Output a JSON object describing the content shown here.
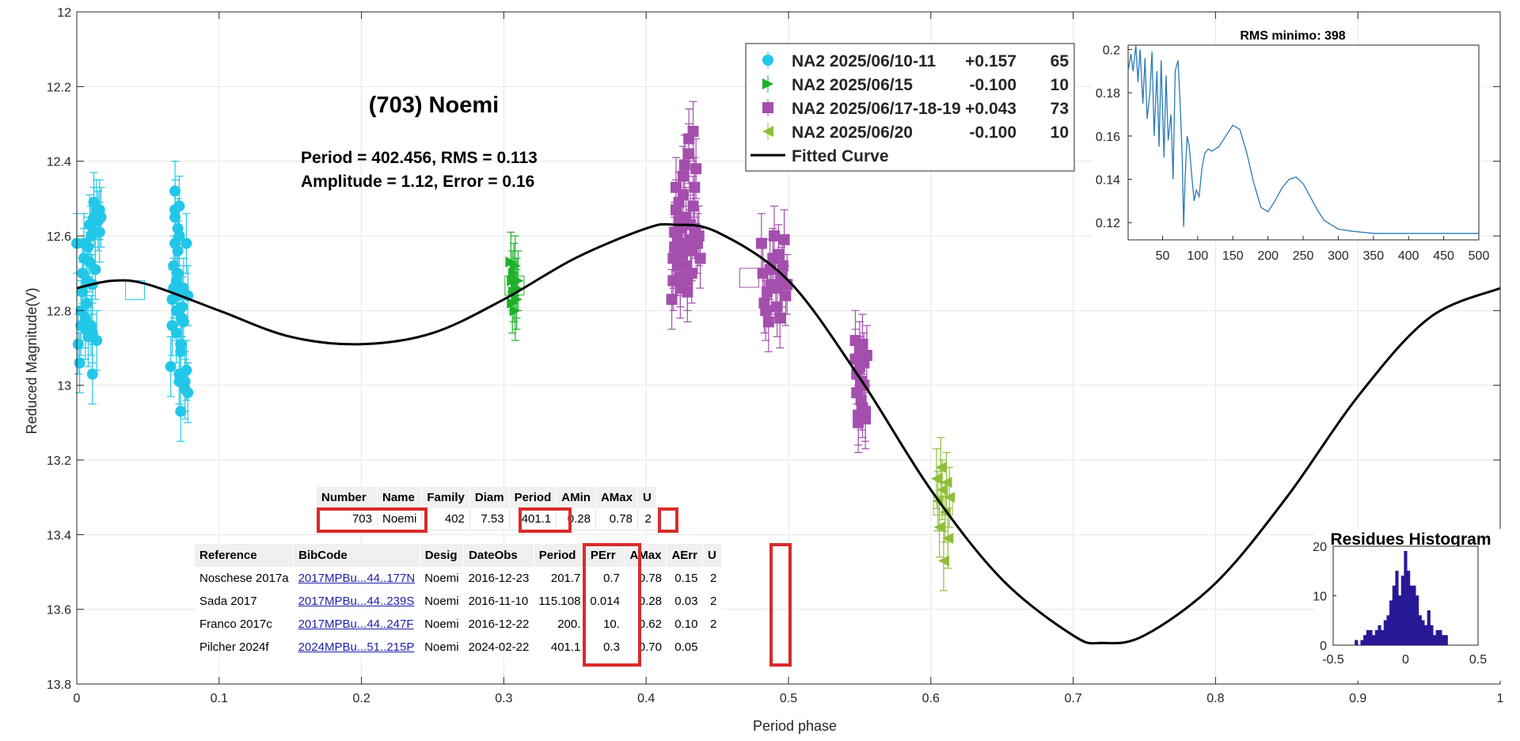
{
  "chart_data": [
    {
      "type": "scatter",
      "title": "(703) Noemi",
      "annotation_lines": [
        "Period =  402.456, RMS = 0.113",
        "Amplitude = 1.12, Error = 0.16"
      ],
      "xlabel": "Period phase",
      "ylabel": "Reduced Magnitude(V)",
      "xlim": [
        0,
        1
      ],
      "ylim": [
        12,
        13.8
      ],
      "y_reversed": true,
      "grid": true,
      "x_ticks": [
        "0",
        "0.1",
        "0.2",
        "0.3",
        "0.4",
        "0.5",
        "0.6",
        "0.7",
        "0.8",
        "0.9",
        "1"
      ],
      "y_ticks": [
        "12",
        "12.2",
        "12.4",
        "12.6",
        "12.8",
        "13",
        "13.2",
        "13.4",
        "13.6",
        "13.8"
      ],
      "legend_position": "top-right",
      "legend": [
        {
          "label": "NA2 2025/06/10-11",
          "offset": "+0.157",
          "count": "65",
          "color": "#22c7e8",
          "marker": "circle"
        },
        {
          "label": "NA2 2025/06/15",
          "offset": "-0.100",
          "count": "10",
          "color": "#1fb02a",
          "marker": "triangle-right"
        },
        {
          "label": "NA2 2025/06/17-18-19",
          "offset": "+0.043",
          "count": "73",
          "color": "#a44fae",
          "marker": "square"
        },
        {
          "label": "NA2 2025/06/20",
          "offset": "-0.100",
          "count": "10",
          "color": "#8fbf3a",
          "marker": "triangle-left"
        },
        {
          "label": "Fitted Curve",
          "offset": "",
          "count": "",
          "color": "#000000",
          "marker": "line"
        }
      ],
      "series": [
        {
          "name": "NA2 2025/06/10-11",
          "color": "#22c7e8",
          "marker": "circle",
          "points": [
            [
              0.0,
              12.62
            ],
            [
              0.001,
              12.89
            ],
            [
              0.002,
              12.94
            ],
            [
              0.003,
              12.84
            ],
            [
              0.003,
              12.8
            ],
            [
              0.004,
              12.75
            ],
            [
              0.004,
              12.7
            ],
            [
              0.005,
              12.66
            ],
            [
              0.005,
              12.62
            ],
            [
              0.006,
              12.82
            ],
            [
              0.006,
              12.85
            ],
            [
              0.007,
              12.78
            ],
            [
              0.007,
              12.72
            ],
            [
              0.008,
              12.87
            ],
            [
              0.008,
              12.63
            ],
            [
              0.009,
              12.57
            ],
            [
              0.009,
              12.67
            ],
            [
              0.01,
              12.6
            ],
            [
              0.01,
              12.84
            ],
            [
              0.011,
              12.73
            ],
            [
              0.011,
              12.86
            ],
            [
              0.011,
              12.97
            ],
            [
              0.012,
              12.51
            ],
            [
              0.012,
              12.55
            ],
            [
              0.013,
              12.59
            ],
            [
              0.013,
              12.69
            ],
            [
              0.014,
              12.53
            ],
            [
              0.014,
              12.88
            ],
            [
              0.015,
              12.56
            ],
            [
              0.016,
              12.59
            ],
            [
              0.016,
              12.53
            ],
            [
              0.017,
              12.55
            ],
            [
              0.066,
              12.95
            ],
            [
              0.067,
              12.77
            ],
            [
              0.067,
              12.84
            ],
            [
              0.068,
              12.74
            ],
            [
              0.068,
              12.68
            ],
            [
              0.069,
              12.62
            ],
            [
              0.069,
              12.55
            ],
            [
              0.069,
              12.53
            ],
            [
              0.069,
              12.48
            ],
            [
              0.07,
              12.72
            ],
            [
              0.07,
              12.8
            ],
            [
              0.07,
              12.86
            ],
            [
              0.071,
              12.76
            ],
            [
              0.071,
              12.7
            ],
            [
              0.071,
              12.64
            ],
            [
              0.071,
              12.58
            ],
            [
              0.072,
              12.6
            ],
            [
              0.072,
              12.52
            ],
            [
              0.072,
              12.99
            ],
            [
              0.072,
              12.97
            ],
            [
              0.073,
              13.07
            ],
            [
              0.073,
              12.91
            ],
            [
              0.073,
              12.89
            ],
            [
              0.074,
              12.82
            ],
            [
              0.074,
              12.79
            ],
            [
              0.075,
              12.74
            ],
            [
              0.075,
              12.83
            ],
            [
              0.076,
              12.99
            ],
            [
              0.076,
              13.01
            ],
            [
              0.077,
              12.96
            ],
            [
              0.077,
              12.62
            ],
            [
              0.078,
              13.02
            ],
            [
              0.078,
              12.76
            ]
          ]
        },
        {
          "name": "NA2 2025/06/15",
          "color": "#1fb02a",
          "marker": "triangle-right",
          "points": [
            [
              0.305,
              12.67
            ],
            [
              0.306,
              12.72
            ],
            [
              0.306,
              12.78
            ],
            [
              0.307,
              12.75
            ],
            [
              0.307,
              12.7
            ],
            [
              0.308,
              12.68
            ],
            [
              0.308,
              12.8
            ],
            [
              0.309,
              12.74
            ],
            [
              0.309,
              12.77
            ],
            [
              0.31,
              12.72
            ]
          ]
        },
        {
          "name": "NA2 2025/06/17-18-19",
          "color": "#a44fae",
          "marker": "square",
          "points": [
            [
              0.418,
              12.77
            ],
            [
              0.419,
              12.72
            ],
            [
              0.419,
              12.66
            ],
            [
              0.42,
              12.63
            ],
            [
              0.42,
              12.59
            ],
            [
              0.421,
              12.53
            ],
            [
              0.421,
              12.47
            ],
            [
              0.422,
              12.68
            ],
            [
              0.422,
              12.61
            ],
            [
              0.423,
              12.56
            ],
            [
              0.423,
              12.51
            ],
            [
              0.424,
              12.71
            ],
            [
              0.424,
              12.74
            ],
            [
              0.425,
              12.65
            ],
            [
              0.425,
              12.58
            ],
            [
              0.426,
              12.49
            ],
            [
              0.426,
              12.44
            ],
            [
              0.427,
              12.41
            ],
            [
              0.427,
              12.62
            ],
            [
              0.428,
              12.55
            ],
            [
              0.428,
              12.68
            ],
            [
              0.429,
              12.72
            ],
            [
              0.429,
              12.75
            ],
            [
              0.43,
              12.38
            ],
            [
              0.43,
              12.34
            ],
            [
              0.431,
              12.57
            ],
            [
              0.431,
              12.61
            ],
            [
              0.432,
              12.64
            ],
            [
              0.432,
              12.7
            ],
            [
              0.433,
              12.32
            ],
            [
              0.433,
              12.52
            ],
            [
              0.434,
              12.58
            ],
            [
              0.434,
              12.47
            ],
            [
              0.435,
              12.42
            ],
            [
              0.436,
              12.62
            ],
            [
              0.437,
              12.6
            ],
            [
              0.438,
              12.66
            ],
            [
              0.481,
              12.62
            ],
            [
              0.482,
              12.7
            ],
            [
              0.483,
              12.78
            ],
            [
              0.484,
              12.8
            ],
            [
              0.485,
              12.75
            ],
            [
              0.486,
              12.83
            ],
            [
              0.487,
              12.69
            ],
            [
              0.488,
              12.73
            ],
            [
              0.489,
              12.66
            ],
            [
              0.49,
              12.6
            ],
            [
              0.491,
              12.74
            ],
            [
              0.492,
              12.79
            ],
            [
              0.493,
              12.65
            ],
            [
              0.494,
              12.82
            ],
            [
              0.495,
              12.71
            ],
            [
              0.496,
              12.68
            ],
            [
              0.497,
              12.61
            ],
            [
              0.498,
              12.76
            ],
            [
              0.499,
              12.73
            ],
            [
              0.547,
              12.88
            ],
            [
              0.547,
              12.93
            ],
            [
              0.548,
              12.97
            ],
            [
              0.548,
              13.02
            ],
            [
              0.549,
              13.08
            ],
            [
              0.549,
              13.1
            ],
            [
              0.55,
              12.91
            ],
            [
              0.55,
              12.95
            ],
            [
              0.551,
              12.99
            ],
            [
              0.551,
              13.04
            ],
            [
              0.552,
              13.06
            ],
            [
              0.552,
              12.89
            ],
            [
              0.553,
              12.94
            ],
            [
              0.553,
              13.0
            ],
            [
              0.554,
              13.07
            ],
            [
              0.554,
              13.09
            ],
            [
              0.555,
              12.92
            ]
          ]
        },
        {
          "name": "NA2 2025/06/20",
          "color": "#8fbf3a",
          "marker": "triangle-left",
          "points": [
            [
              0.604,
              13.25
            ],
            [
              0.605,
              13.31
            ],
            [
              0.606,
              13.38
            ],
            [
              0.607,
              13.22
            ],
            [
              0.608,
              13.28
            ],
            [
              0.609,
              13.47
            ],
            [
              0.61,
              13.34
            ],
            [
              0.611,
              13.26
            ],
            [
              0.612,
              13.41
            ],
            [
              0.613,
              13.3
            ]
          ]
        },
        {
          "name": "Fitted Curve",
          "color": "#000000",
          "marker": "line",
          "points": [
            [
              0.0,
              12.74
            ],
            [
              0.025,
              12.72
            ],
            [
              0.05,
              12.73
            ],
            [
              0.1,
              12.8
            ],
            [
              0.15,
              12.87
            ],
            [
              0.2,
              12.89
            ],
            [
              0.25,
              12.86
            ],
            [
              0.3,
              12.77
            ],
            [
              0.35,
              12.66
            ],
            [
              0.4,
              12.58
            ],
            [
              0.42,
              12.57
            ],
            [
              0.45,
              12.59
            ],
            [
              0.5,
              12.72
            ],
            [
              0.55,
              12.98
            ],
            [
              0.6,
              13.28
            ],
            [
              0.65,
              13.52
            ],
            [
              0.7,
              13.67
            ],
            [
              0.72,
              13.69
            ],
            [
              0.75,
              13.67
            ],
            [
              0.8,
              13.53
            ],
            [
              0.85,
              13.3
            ],
            [
              0.9,
              13.03
            ],
            [
              0.95,
              12.82
            ],
            [
              1.0,
              12.74
            ]
          ]
        }
      ]
    },
    {
      "type": "line",
      "title": "RMS minimo: 398",
      "xlim": [
        1,
        500
      ],
      "ylim": [
        0.112,
        0.202
      ],
      "x_ticks": [
        "50",
        "100",
        "150",
        "200",
        "250",
        "300",
        "350",
        "400",
        "450",
        "500"
      ],
      "y_ticks": [
        "0.12",
        "0.14",
        "0.16",
        "0.18",
        "0.2"
      ],
      "color": "#2a7ab8",
      "x": [
        1,
        5,
        8,
        12,
        15,
        18,
        22,
        25,
        28,
        32,
        35,
        38,
        42,
        45,
        48,
        52,
        55,
        58,
        62,
        65,
        68,
        72,
        75,
        78,
        80,
        82,
        85,
        88,
        92,
        95,
        98,
        102,
        106,
        110,
        115,
        120,
        130,
        140,
        150,
        160,
        170,
        180,
        190,
        200,
        210,
        220,
        230,
        240,
        250,
        260,
        270,
        280,
        300,
        320,
        350,
        400,
        450,
        500
      ],
      "values": [
        0.19,
        0.198,
        0.19,
        0.202,
        0.185,
        0.2,
        0.175,
        0.196,
        0.168,
        0.18,
        0.199,
        0.16,
        0.19,
        0.155,
        0.195,
        0.15,
        0.188,
        0.158,
        0.17,
        0.14,
        0.19,
        0.195,
        0.175,
        0.15,
        0.118,
        0.14,
        0.16,
        0.155,
        0.14,
        0.13,
        0.135,
        0.132,
        0.145,
        0.152,
        0.154,
        0.153,
        0.155,
        0.16,
        0.165,
        0.163,
        0.152,
        0.138,
        0.127,
        0.125,
        0.13,
        0.136,
        0.14,
        0.141,
        0.138,
        0.132,
        0.126,
        0.121,
        0.117,
        0.116,
        0.115,
        0.115,
        0.115,
        0.115
      ]
    },
    {
      "type": "bar",
      "title": "Residues Histogram",
      "xlim": [
        -0.5,
        0.5
      ],
      "ylim": [
        0,
        20
      ],
      "x_ticks": [
        "-0.5",
        "0",
        "0.5"
      ],
      "y_ticks": [
        "0",
        "10",
        "20"
      ],
      "color": "#2b1a9e",
      "bin_width": 0.02,
      "bin_centers": [
        -0.34,
        -0.3,
        -0.28,
        -0.26,
        -0.24,
        -0.22,
        -0.2,
        -0.18,
        -0.16,
        -0.14,
        -0.12,
        -0.1,
        -0.08,
        -0.06,
        -0.04,
        -0.02,
        0.0,
        0.02,
        0.04,
        0.06,
        0.08,
        0.1,
        0.12,
        0.14,
        0.16,
        0.18,
        0.2,
        0.22,
        0.24,
        0.26,
        0.28
      ],
      "values": [
        1,
        1,
        2,
        3,
        3,
        2,
        3,
        4,
        3,
        5,
        6,
        9,
        12,
        15,
        10,
        14,
        19,
        15,
        12,
        12,
        10,
        6,
        5,
        4,
        7,
        4,
        2,
        3,
        3,
        2,
        2
      ]
    }
  ],
  "table1": {
    "headers": [
      "Number",
      "Name",
      "Family",
      "Diam",
      "Period",
      "AMin",
      "AMax",
      "U"
    ],
    "row": [
      "703",
      "Noemi",
      "402",
      "7.53",
      "401.1",
      "0.28",
      "0.78",
      "2"
    ]
  },
  "table2": {
    "headers": [
      "Reference",
      "BibCode",
      "Desig",
      "DateObs",
      "Period",
      "PErr",
      "AMax",
      "AErr",
      "U"
    ],
    "rows": [
      [
        "Noschese 2017a",
        "2017MPBu...44..177N",
        "Noemi",
        "2016-12-23",
        "201.7",
        "0.7",
        "0.78",
        "0.15",
        "2"
      ],
      [
        "Sada 2017",
        "2017MPBu...44..239S",
        "Noemi",
        "2016-11-10",
        "115.108",
        "0.014",
        "0.28",
        "0.03",
        "2"
      ],
      [
        "Franco 2017c",
        "2017MPBu...44..247F",
        "Noemi",
        "2016-12-22",
        "200.",
        "10.",
        "0.62",
        "0.10",
        "2"
      ],
      [
        "Pilcher 2024f",
        "2024MPBu...51..215P",
        "Noemi",
        "2024-02-22",
        "401.1",
        "0.3",
        "0.70",
        "0.05",
        ""
      ]
    ]
  }
}
